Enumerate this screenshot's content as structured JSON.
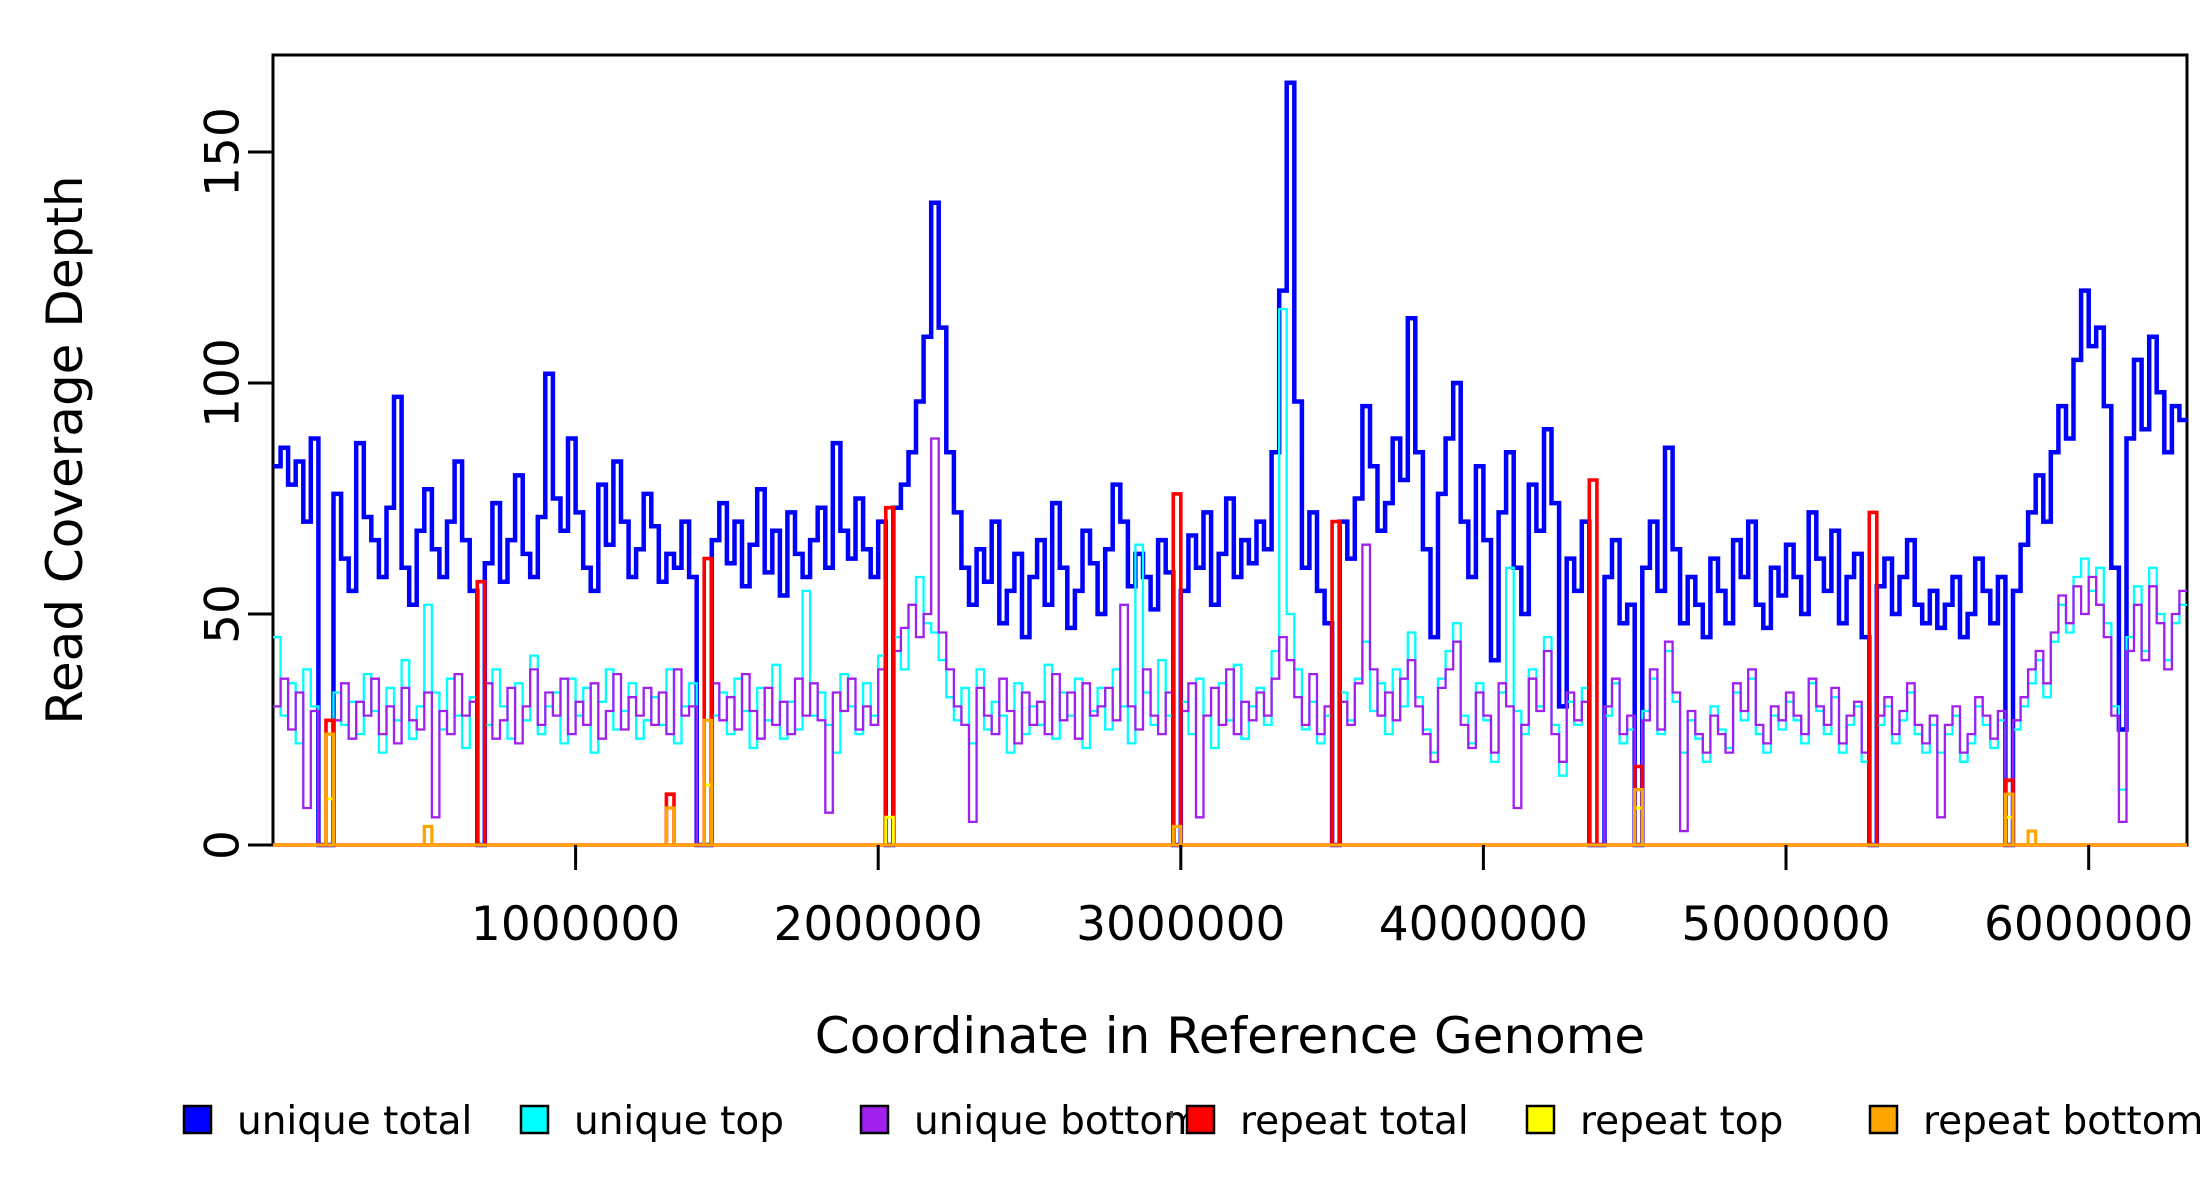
{
  "chart_data": {
    "type": "line",
    "step": true,
    "grid": false,
    "bin_size": 25000,
    "x_axis": {
      "label": "Coordinate in Reference Genome",
      "range": [
        0,
        6325000
      ],
      "ticks": [
        {
          "value": 1000000,
          "label": "1000000"
        },
        {
          "value": 2000000,
          "label": "2000000"
        },
        {
          "value": 3000000,
          "label": "3000000"
        },
        {
          "value": 4000000,
          "label": "4000000"
        },
        {
          "value": 5000000,
          "label": "5000000"
        },
        {
          "value": 6000000,
          "label": "6000000"
        }
      ]
    },
    "y_axis": {
      "label": "Read Coverage Depth",
      "range": [
        0,
        171
      ],
      "ticks": [
        {
          "value": 0,
          "label": "0"
        },
        {
          "value": 50,
          "label": "50"
        },
        {
          "value": 100,
          "label": "100"
        },
        {
          "value": 150,
          "label": "150"
        }
      ]
    },
    "legend": {
      "position": "bottom",
      "items": [
        {
          "label": "unique total",
          "color": "#0000FF"
        },
        {
          "label": "unique top",
          "color": "#00FFFF"
        },
        {
          "label": "unique bottom",
          "color": "#A020F0"
        },
        {
          "label": "repeat total",
          "color": "#FF0000"
        },
        {
          "label": "repeat top",
          "color": "#FFFF00"
        },
        {
          "label": "repeat bottom",
          "color": "#FFA500"
        }
      ]
    },
    "series": [
      {
        "name": "unique total",
        "color": "#0000FF",
        "stroke_width": 4.5,
        "kind": "dense",
        "values": [
          82,
          86,
          78,
          83,
          70,
          88,
          0,
          0,
          76,
          62,
          55,
          87,
          71,
          66,
          58,
          73,
          97,
          60,
          52,
          68,
          77,
          64,
          58,
          70,
          83,
          66,
          55,
          0,
          61,
          74,
          57,
          66,
          80,
          63,
          58,
          71,
          102,
          75,
          68,
          88,
          72,
          60,
          55,
          78,
          65,
          83,
          70,
          58,
          64,
          76,
          69,
          57,
          63,
          60,
          70,
          58,
          0,
          0,
          66,
          74,
          61,
          70,
          56,
          65,
          77,
          59,
          68,
          54,
          72,
          63,
          58,
          66,
          73,
          60,
          87,
          68,
          62,
          75,
          64,
          58,
          70,
          0,
          73,
          78,
          85,
          96,
          110,
          139,
          112,
          85,
          72,
          60,
          52,
          64,
          57,
          70,
          48,
          55,
          63,
          45,
          58,
          66,
          52,
          74,
          60,
          47,
          55,
          68,
          61,
          50,
          64,
          78,
          70,
          56,
          63,
          58,
          51,
          66,
          59,
          0,
          55,
          67,
          60,
          72,
          52,
          63,
          75,
          58,
          66,
          61,
          70,
          64,
          85,
          120,
          165,
          96,
          60,
          72,
          55,
          48,
          0,
          70,
          62,
          75,
          95,
          82,
          68,
          74,
          88,
          79,
          114,
          85,
          64,
          45,
          76,
          88,
          100,
          70,
          58,
          82,
          66,
          40,
          72,
          85,
          60,
          50,
          78,
          68,
          90,
          74,
          30,
          62,
          55,
          70,
          0,
          0,
          58,
          66,
          48,
          52,
          0,
          60,
          70,
          55,
          86,
          64,
          48,
          58,
          52,
          45,
          62,
          55,
          48,
          66,
          58,
          70,
          52,
          47,
          60,
          54,
          65,
          58,
          50,
          72,
          62,
          55,
          68,
          48,
          58,
          63,
          45,
          0,
          56,
          62,
          50,
          58,
          66,
          52,
          48,
          55,
          47,
          52,
          58,
          45,
          50,
          62,
          55,
          48,
          58,
          0,
          55,
          65,
          72,
          80,
          70,
          85,
          95,
          88,
          105,
          120,
          108,
          112,
          95,
          60,
          25,
          88,
          105,
          90,
          110,
          98,
          85,
          95,
          92
        ]
      },
      {
        "name": "unique top",
        "color": "#00FFFF",
        "stroke_width": 2.3,
        "kind": "dense",
        "values": [
          45,
          28,
          35,
          22,
          38,
          30,
          0,
          0,
          33,
          26,
          31,
          24,
          37,
          29,
          20,
          34,
          27,
          40,
          23,
          30,
          52,
          33,
          25,
          36,
          28,
          21,
          32,
          0,
          26,
          38,
          30,
          23,
          35,
          27,
          41,
          24,
          30,
          33,
          22,
          36,
          28,
          34,
          20,
          31,
          38,
          25,
          29,
          35,
          23,
          27,
          32,
          26,
          38,
          22,
          30,
          35,
          0,
          0,
          28,
          33,
          24,
          36,
          29,
          21,
          34,
          27,
          39,
          23,
          31,
          25,
          55,
          28,
          33,
          26,
          20,
          37,
          30,
          24,
          35,
          28,
          41,
          0,
          45,
          38,
          52,
          58,
          48,
          46,
          40,
          32,
          27,
          34,
          22,
          38,
          25,
          31,
          28,
          20,
          35,
          24,
          30,
          26,
          39,
          23,
          33,
          28,
          36,
          21,
          29,
          34,
          25,
          38,
          30,
          22,
          65,
          33,
          26,
          40,
          28,
          0,
          31,
          24,
          36,
          28,
          21,
          35,
          27,
          39,
          23,
          30,
          34,
          26,
          42,
          116,
          50,
          38,
          25,
          31,
          22,
          28,
          0,
          33,
          27,
          36,
          44,
          29,
          35,
          24,
          38,
          30,
          46,
          32,
          25,
          20,
          36,
          42,
          48,
          28,
          22,
          35,
          27,
          18,
          33,
          60,
          29,
          24,
          38,
          30,
          45,
          26,
          15,
          31,
          26,
          34,
          0,
          0,
          28,
          35,
          22,
          25,
          0,
          29,
          36,
          24,
          42,
          31,
          20,
          27,
          23,
          18,
          30,
          25,
          21,
          33,
          27,
          36,
          24,
          20,
          28,
          25,
          31,
          27,
          22,
          35,
          29,
          24,
          32,
          20,
          26,
          30,
          18,
          0,
          26,
          30,
          22,
          27,
          33,
          24,
          20,
          26,
          20,
          24,
          28,
          18,
          22,
          30,
          26,
          21,
          27,
          0,
          25,
          30,
          35,
          40,
          32,
          44,
          52,
          46,
          58,
          62,
          55,
          60,
          48,
          30,
          12,
          45,
          56,
          42,
          60,
          50,
          40,
          48,
          52
        ]
      },
      {
        "name": "unique bottom",
        "color": "#A020F0",
        "stroke_width": 2.3,
        "kind": "dense",
        "values": [
          30,
          36,
          25,
          33,
          8,
          29,
          0,
          0,
          27,
          35,
          23,
          31,
          28,
          36,
          24,
          30,
          22,
          34,
          27,
          25,
          33,
          6,
          29,
          24,
          37,
          28,
          31,
          0,
          35,
          23,
          27,
          34,
          22,
          30,
          38,
          26,
          33,
          28,
          36,
          24,
          31,
          26,
          35,
          23,
          29,
          37,
          25,
          32,
          28,
          34,
          26,
          33,
          24,
          38,
          28,
          30,
          0,
          0,
          35,
          27,
          32,
          25,
          37,
          29,
          23,
          34,
          26,
          31,
          24,
          36,
          28,
          35,
          27,
          7,
          33,
          29,
          36,
          25,
          30,
          26,
          38,
          0,
          42,
          47,
          52,
          45,
          50,
          88,
          46,
          38,
          30,
          26,
          5,
          34,
          28,
          24,
          36,
          29,
          22,
          33,
          26,
          31,
          24,
          37,
          27,
          33,
          23,
          35,
          28,
          30,
          34,
          27,
          52,
          30,
          25,
          38,
          28,
          24,
          33,
          0,
          29,
          35,
          6,
          28,
          34,
          26,
          38,
          24,
          31,
          27,
          33,
          28,
          36,
          45,
          40,
          32,
          26,
          37,
          24,
          30,
          0,
          31,
          26,
          35,
          65,
          38,
          28,
          33,
          27,
          36,
          40,
          30,
          24,
          18,
          34,
          38,
          44,
          26,
          21,
          33,
          28,
          20,
          35,
          30,
          8,
          26,
          36,
          29,
          42,
          24,
          18,
          33,
          27,
          31,
          0,
          0,
          30,
          36,
          24,
          28,
          0,
          27,
          38,
          25,
          44,
          33,
          3,
          29,
          24,
          20,
          28,
          24,
          20,
          35,
          29,
          38,
          26,
          22,
          30,
          27,
          33,
          28,
          24,
          36,
          30,
          26,
          34,
          22,
          28,
          31,
          20,
          0,
          28,
          32,
          24,
          29,
          35,
          26,
          22,
          28,
          6,
          26,
          30,
          20,
          24,
          32,
          28,
          23,
          29,
          0,
          27,
          32,
          38,
          42,
          35,
          46,
          54,
          48,
          56,
          50,
          58,
          52,
          45,
          28,
          5,
          42,
          52,
          40,
          56,
          48,
          38,
          50,
          55
        ]
      },
      {
        "name": "repeat total",
        "color": "#FF0000",
        "stroke_width": 3.6,
        "kind": "spikes",
        "baseline": 0,
        "spikes": [
          {
            "x": 187500,
            "value": 27
          },
          {
            "x": 687500,
            "value": 57
          },
          {
            "x": 1312500,
            "value": 11
          },
          {
            "x": 1437500,
            "value": 62
          },
          {
            "x": 2037500,
            "value": 73
          },
          {
            "x": 2987500,
            "value": 76
          },
          {
            "x": 3512500,
            "value": 70
          },
          {
            "x": 4362500,
            "value": 79
          },
          {
            "x": 4512500,
            "value": 17
          },
          {
            "x": 5287500,
            "value": 72
          },
          {
            "x": 5737500,
            "value": 14
          }
        ]
      },
      {
        "name": "repeat top",
        "color": "#FFFF00",
        "stroke_width": 3.0,
        "kind": "spikes",
        "baseline": 0,
        "spikes": [
          {
            "x": 187500,
            "value": 10
          },
          {
            "x": 1437500,
            "value": 13
          },
          {
            "x": 2037500,
            "value": 6
          },
          {
            "x": 4512500,
            "value": 8
          },
          {
            "x": 5737500,
            "value": 6
          }
        ]
      },
      {
        "name": "repeat bottom",
        "color": "#FFA500",
        "stroke_width": 3.2,
        "kind": "spikes",
        "baseline": 0,
        "spikes": [
          {
            "x": 187500,
            "value": 24
          },
          {
            "x": 512500,
            "value": 4
          },
          {
            "x": 1312500,
            "value": 8
          },
          {
            "x": 1437500,
            "value": 27
          },
          {
            "x": 2987500,
            "value": 4
          },
          {
            "x": 4512500,
            "value": 12
          },
          {
            "x": 5737500,
            "value": 11
          },
          {
            "x": 5812500,
            "value": 3
          }
        ]
      }
    ]
  }
}
